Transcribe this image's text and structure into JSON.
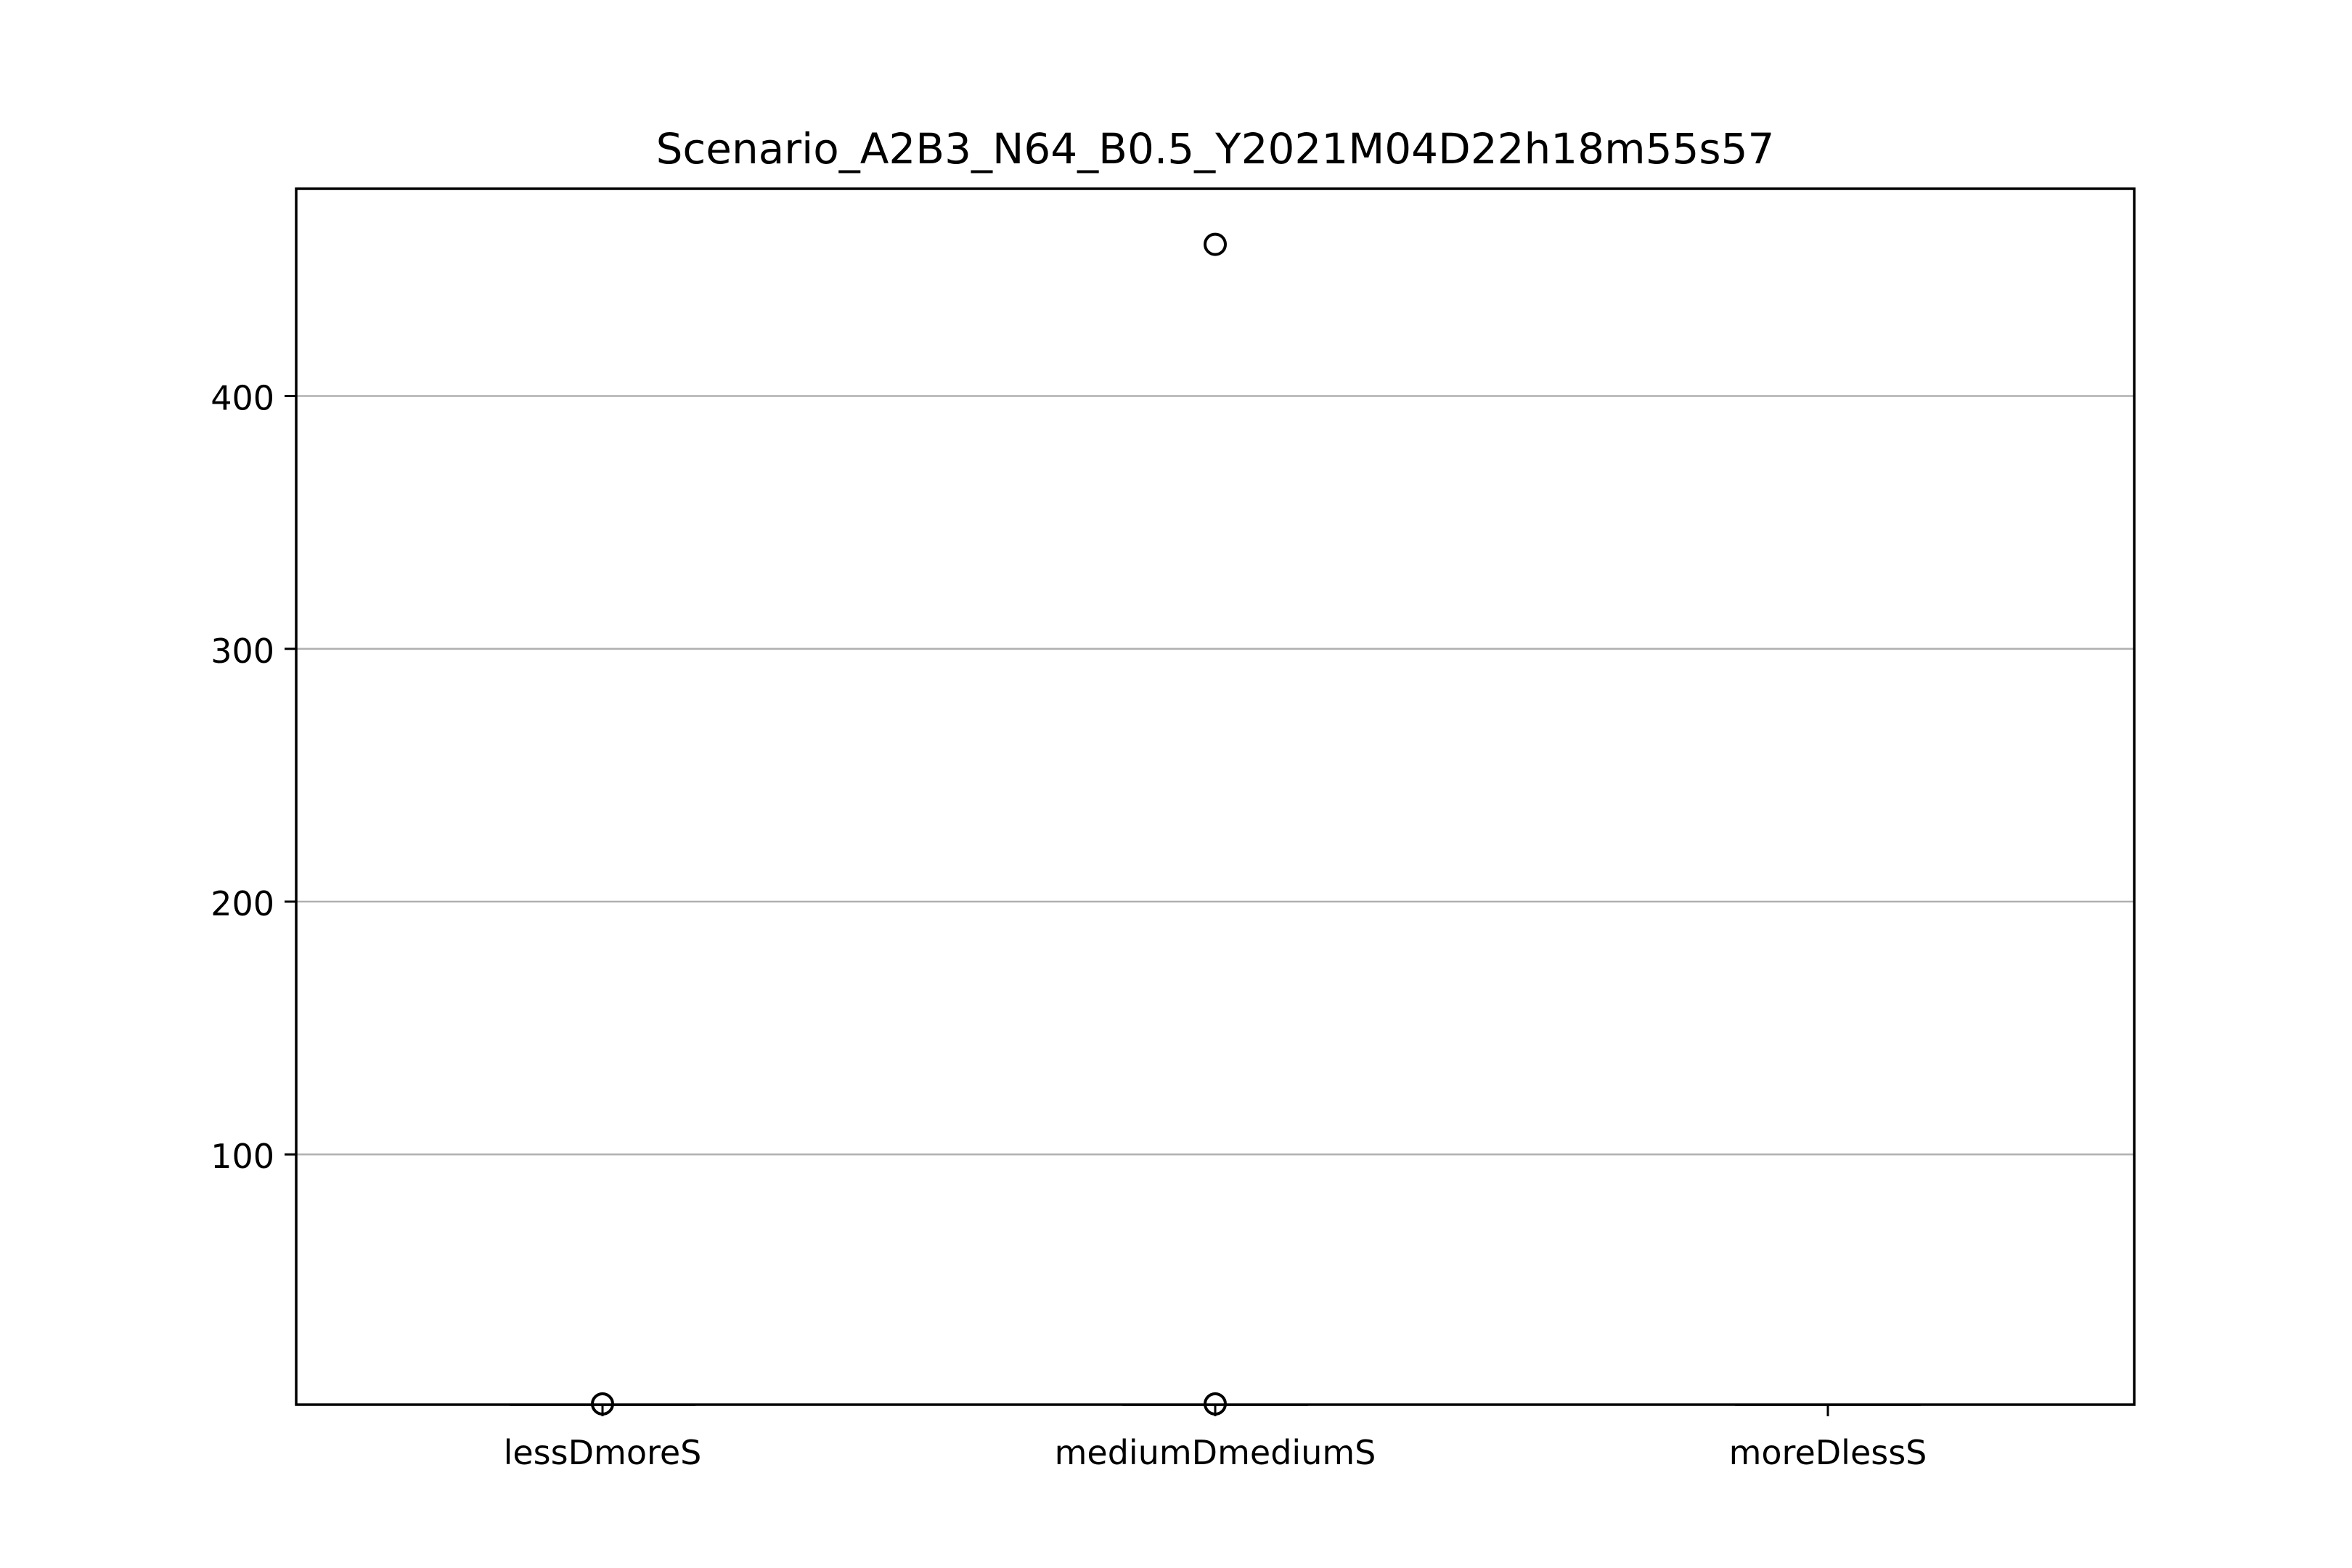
{
  "chart_data": {
    "type": "box",
    "title": "Scenario_A2B3_N64_B0.5_Y2021M04D22h18m55s57",
    "xlabel": "",
    "ylabel": "",
    "categories": [
      "lessDmoreS",
      "mediumDmediumS",
      "moreDlessS"
    ],
    "ylim": [
      1,
      482
    ],
    "yticks": [
      100,
      200,
      300,
      400
    ],
    "grid": "y",
    "series": [
      {
        "category": "lessDmoreS",
        "q1": 1,
        "median": 1,
        "q3": 1,
        "whisker_low": 1,
        "whisker_high": 1,
        "outliers": [
          1.3
        ]
      },
      {
        "category": "mediumDmediumS",
        "q1": 1,
        "median": 1,
        "q3": 1,
        "whisker_low": 1,
        "whisker_high": 1,
        "outliers": [
          1.3,
          460
        ]
      },
      {
        "category": "moreDlessS",
        "q1": 1,
        "median": 1,
        "q3": 1,
        "whisker_low": 1,
        "whisker_high": 1,
        "outliers": []
      }
    ],
    "colors": {
      "box": "#000000",
      "median": "#ff7f0e",
      "grid": "#b0b0b0",
      "axes": "#000000"
    }
  }
}
